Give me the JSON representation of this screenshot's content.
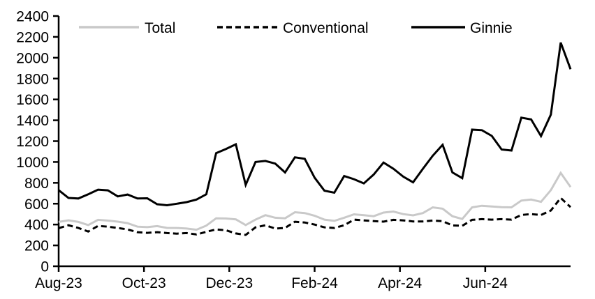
{
  "chart_data": {
    "type": "line",
    "title": "",
    "xlabel": "",
    "ylabel": "",
    "grid": false,
    "legend_position": "top",
    "x_tick_labels": [
      "Aug-23",
      "Oct-23",
      "Dec-23",
      "Feb-24",
      "Apr-24",
      "Jun-24"
    ],
    "y_tick_labels": [
      "0",
      "200",
      "400",
      "600",
      "800",
      "1000",
      "1200",
      "1400",
      "1600",
      "1800",
      "2000",
      "2200",
      "2400"
    ],
    "y_axis": {
      "min": 0,
      "max": 2400,
      "step": 200
    },
    "x_frequency": "weekly",
    "x_range_note": "weekly points from Aug-23 through early Aug-24",
    "colors": {
      "total": "#c9c9c9",
      "conventional": "#000000",
      "ginnie": "#000000",
      "axis": "#000000"
    },
    "series": [
      {
        "name": "Total",
        "color": "#c9c9c9",
        "dash": "none",
        "values": [
          425,
          440,
          425,
          395,
          445,
          438,
          428,
          413,
          380,
          375,
          385,
          368,
          367,
          362,
          350,
          390,
          460,
          458,
          450,
          395,
          447,
          490,
          465,
          460,
          518,
          510,
          485,
          447,
          435,
          465,
          498,
          490,
          480,
          515,
          525,
          500,
          488,
          510,
          565,
          552,
          480,
          453,
          565,
          580,
          573,
          567,
          565,
          630,
          640,
          618,
          730,
          895,
          760
        ]
      },
      {
        "name": "Conventional",
        "color": "#000000",
        "dash": "8 5",
        "values": [
          365,
          393,
          367,
          333,
          387,
          380,
          367,
          353,
          327,
          320,
          327,
          318,
          313,
          318,
          305,
          330,
          353,
          345,
          315,
          300,
          373,
          393,
          362,
          368,
          427,
          420,
          400,
          373,
          367,
          393,
          447,
          440,
          433,
          428,
          445,
          440,
          430,
          430,
          438,
          432,
          392,
          388,
          445,
          452,
          447,
          452,
          447,
          492,
          500,
          492,
          535,
          655,
          567
        ]
      },
      {
        "name": "Ginnie",
        "color": "#000000",
        "dash": "none",
        "values": [
          730,
          655,
          650,
          690,
          735,
          728,
          670,
          688,
          650,
          652,
          595,
          585,
          600,
          615,
          640,
          690,
          1085,
          1125,
          1170,
          780,
          1000,
          1010,
          985,
          900,
          1045,
          1030,
          850,
          725,
          705,
          865,
          835,
          795,
          880,
          995,
          935,
          860,
          805,
          935,
          1060,
          1165,
          900,
          845,
          1310,
          1305,
          1250,
          1120,
          1110,
          1425,
          1408,
          1248,
          1455,
          2145,
          1890
        ]
      }
    ]
  }
}
